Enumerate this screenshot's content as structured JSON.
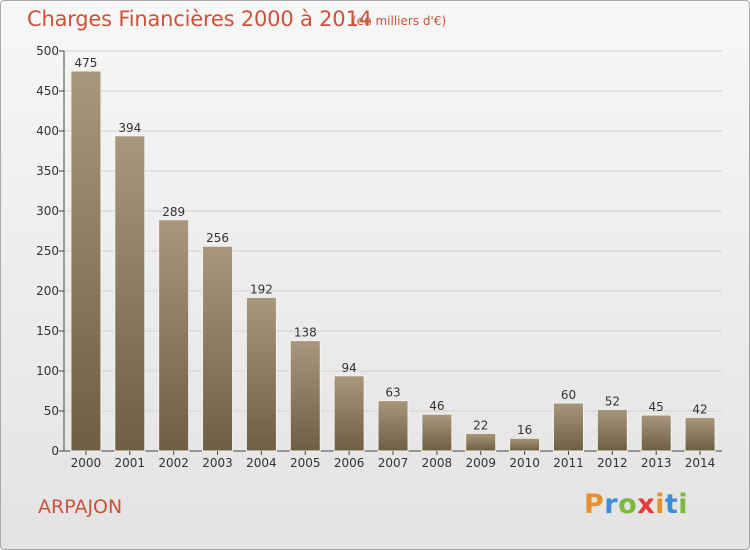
{
  "title": "Charges Financières 2000 à 2014",
  "subtitle": "(en milliers d'€)",
  "town": "ARPAJON",
  "logo": {
    "letters": [
      "P",
      "r",
      "o",
      "x",
      "i",
      "t",
      "i"
    ],
    "colors": [
      "#e8912c",
      "#3c8fd6",
      "#7bb83c",
      "#e33c3c",
      "#e8912c",
      "#3c8fd6",
      "#7bb83c"
    ]
  },
  "chart_data": {
    "type": "bar",
    "categories": [
      "2000",
      "2001",
      "2002",
      "2003",
      "2004",
      "2005",
      "2006",
      "2007",
      "2008",
      "2009",
      "2010",
      "2011",
      "2012",
      "2013",
      "2014"
    ],
    "values": [
      475,
      394,
      289,
      256,
      192,
      138,
      94,
      63,
      46,
      22,
      16,
      60,
      52,
      45,
      42
    ],
    "title": "Charges Financières 2000 à 2014",
    "subtitle": "(en milliers d'€)",
    "xlabel": "",
    "ylabel": "",
    "ylim": [
      0,
      500
    ],
    "yticks": [
      0,
      50,
      100,
      150,
      200,
      250,
      300,
      350,
      400,
      450,
      500
    ],
    "grid": true,
    "bar_color_top": "#a8977c",
    "bar_color_bottom": "#6e5e43"
  }
}
